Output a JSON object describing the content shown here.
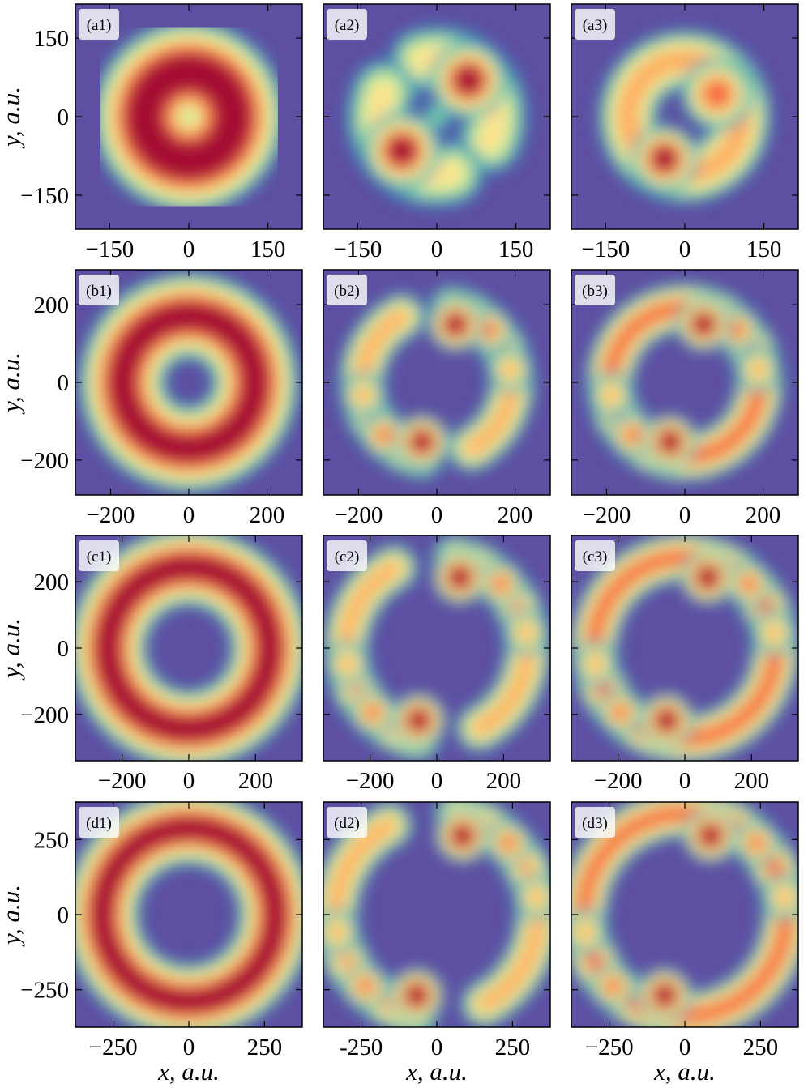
{
  "chart_data": [
    {
      "type": "heatmap",
      "title": "(a1)",
      "ylabel": "y, a.u.",
      "xlim": [
        -215,
        215
      ],
      "ylim": [
        -215,
        215
      ],
      "xticks": [
        {
          "value": -150,
          "label": "−150"
        },
        0,
        150
      ],
      "yticks": [
        {
          "value": -150,
          "label": "−150"
        },
        0,
        150
      ]
    },
    {
      "type": "heatmap",
      "title": "(a2)",
      "xlim": [
        -215,
        215
      ],
      "ylim": [
        -215,
        215
      ],
      "xticks": [
        {
          "value": -150,
          "label": "−150"
        },
        0,
        150
      ],
      "yticks": [
        -150,
        0,
        150
      ]
    },
    {
      "type": "heatmap",
      "title": "(a3)",
      "xlim": [
        -215,
        215
      ],
      "ylim": [
        -215,
        215
      ],
      "xticks": [
        {
          "value": -150,
          "label": "−150"
        },
        0,
        150
      ],
      "yticks": [
        -150,
        0,
        150
      ]
    },
    {
      "type": "heatmap",
      "title": "(b1)",
      "ylabel": "y, a.u.",
      "xlim": [
        -290,
        290
      ],
      "ylim": [
        -290,
        290
      ],
      "xticks": [
        {
          "value": -200,
          "label": "−200"
        },
        0,
        200
      ],
      "yticks": [
        {
          "value": -200,
          "label": "−200"
        },
        0,
        200
      ]
    },
    {
      "type": "heatmap",
      "title": "(b2)",
      "xlim": [
        -290,
        290
      ],
      "ylim": [
        -290,
        290
      ],
      "xticks": [
        {
          "value": -200,
          "label": "−200"
        },
        0,
        200
      ],
      "yticks": [
        -200,
        0,
        200
      ]
    },
    {
      "type": "heatmap",
      "title": "(b3)",
      "xlim": [
        -290,
        290
      ],
      "ylim": [
        -290,
        290
      ],
      "xticks": [
        {
          "value": -200,
          "label": "−200"
        },
        0,
        200
      ],
      "yticks": [
        -200,
        0,
        200
      ]
    },
    {
      "type": "heatmap",
      "title": "(c1)",
      "ylabel": "y, a.u.",
      "xlim": [
        -340,
        340
      ],
      "ylim": [
        -340,
        340
      ],
      "xticks": [
        {
          "value": -200,
          "label": "−200"
        },
        0,
        200
      ],
      "yticks": [
        {
          "value": -200,
          "label": "−200"
        },
        0,
        200
      ]
    },
    {
      "type": "heatmap",
      "title": "(c2)",
      "xlim": [
        -340,
        340
      ],
      "ylim": [
        -340,
        340
      ],
      "xticks": [
        {
          "value": -200,
          "label": "−200"
        },
        0,
        200
      ],
      "yticks": [
        -200,
        0,
        200
      ]
    },
    {
      "type": "heatmap",
      "title": "(c3)",
      "xlim": [
        -340,
        340
      ],
      "ylim": [
        -340,
        340
      ],
      "xticks": [
        {
          "value": -200,
          "label": "−200"
        },
        0,
        200
      ],
      "yticks": [
        -200,
        0,
        200
      ]
    },
    {
      "type": "heatmap",
      "title": "(d1)",
      "ylabel": "y, a.u.",
      "xlabel": "x, a.u.",
      "xlim": [
        -375,
        375
      ],
      "ylim": [
        -375,
        375
      ],
      "xticks": [
        {
          "value": -250,
          "label": "−250"
        },
        0,
        250
      ],
      "yticks": [
        {
          "value": -250,
          "label": "−250"
        },
        0,
        250
      ]
    },
    {
      "type": "heatmap",
      "title": "(d2)",
      "xlabel": "x, a.u.",
      "xlim": [
        -375,
        375
      ],
      "ylim": [
        -375,
        375
      ],
      "xticks": [
        {
          "value": -250,
          "label": "-250"
        },
        0,
        250
      ],
      "yticks": [
        -250,
        0,
        250
      ]
    },
    {
      "type": "heatmap",
      "title": "(d3)",
      "xlabel": "x, a.u.",
      "xlim": [
        -375,
        375
      ],
      "ylim": [
        -375,
        375
      ],
      "xticks": [
        {
          "value": -250,
          "label": "−250"
        },
        0,
        250
      ],
      "yticks": [
        -250,
        0,
        250
      ]
    }
  ]
}
